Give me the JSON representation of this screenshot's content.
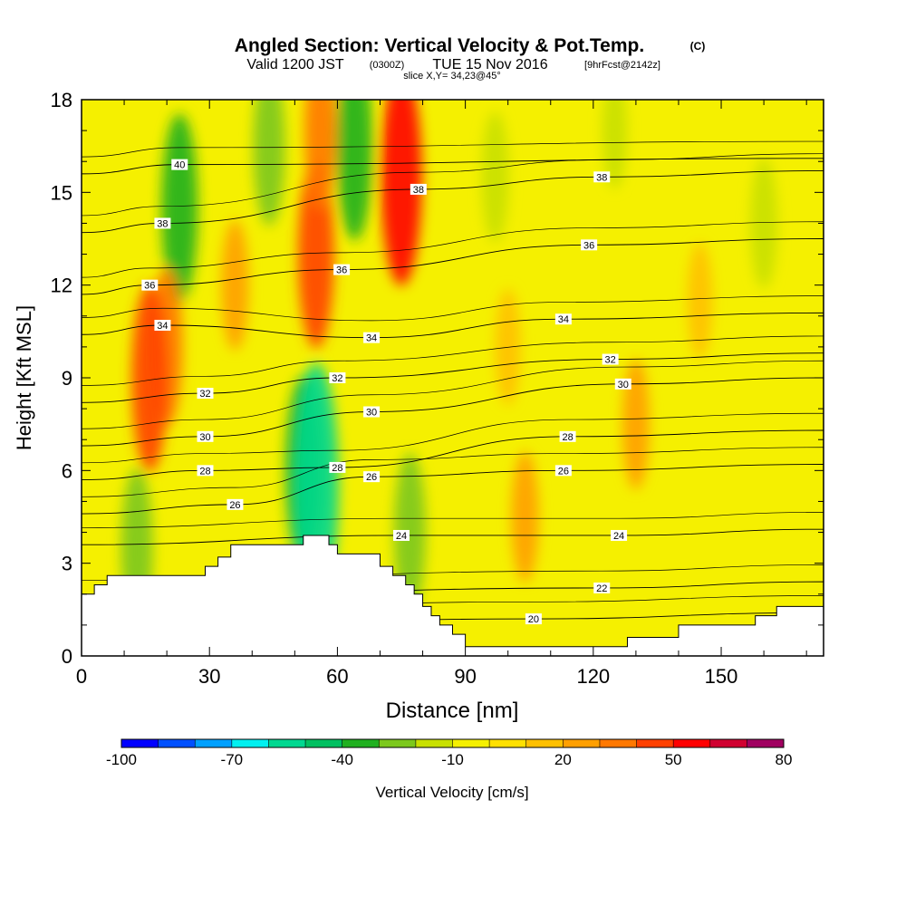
{
  "title": {
    "main": "Angled Section: Vertical Velocity & Pot.Temp.",
    "main_unit": "(C)",
    "valid_prefix": "Valid 1200 JST",
    "valid_utc": "(0300Z)",
    "valid_date": "TUE 15 Nov 2016",
    "forecast": "[9hrFcst@2142z]",
    "slice": "slice X,Y= 34,23@45°"
  },
  "chart_data": {
    "type": "heatmap",
    "xlabel": "Distance [nm]",
    "ylabel": "Height [Kft MSL]",
    "xlim": [
      0,
      174
    ],
    "ylim": [
      0,
      18
    ],
    "x_ticks": [
      "0",
      "30",
      "60",
      "90",
      "120",
      "150"
    ],
    "x_tick_values": [
      0,
      30,
      60,
      90,
      120,
      150
    ],
    "y_ticks": [
      "0",
      "3",
      "6",
      "9",
      "12",
      "15",
      "18"
    ],
    "y_tick_values": [
      0,
      3,
      6,
      9,
      12,
      15,
      18
    ],
    "terrain": [
      [
        0,
        2.0
      ],
      [
        3,
        2.0
      ],
      [
        3,
        2.3
      ],
      [
        6,
        2.3
      ],
      [
        6,
        2.6
      ],
      [
        21,
        2.6
      ],
      [
        21,
        2.6
      ],
      [
        29,
        2.6
      ],
      [
        29,
        2.9
      ],
      [
        32,
        2.9
      ],
      [
        32,
        3.2
      ],
      [
        35,
        3.2
      ],
      [
        35,
        3.6
      ],
      [
        52,
        3.6
      ],
      [
        52,
        3.9
      ],
      [
        58,
        3.9
      ],
      [
        58,
        3.6
      ],
      [
        60,
        3.6
      ],
      [
        60,
        3.3
      ],
      [
        70,
        3.3
      ],
      [
        70,
        2.9
      ],
      [
        73,
        2.9
      ],
      [
        73,
        2.6
      ],
      [
        76,
        2.6
      ],
      [
        76,
        2.3
      ],
      [
        78,
        2.3
      ],
      [
        78,
        2.0
      ],
      [
        80,
        2.0
      ],
      [
        80,
        1.6
      ],
      [
        82,
        1.6
      ],
      [
        82,
        1.3
      ],
      [
        84,
        1.3
      ],
      [
        84,
        1.0
      ],
      [
        87,
        1.0
      ],
      [
        87,
        0.7
      ],
      [
        90,
        0.7
      ],
      [
        90,
        0.3
      ],
      [
        100,
        0.3
      ],
      [
        128,
        0.3
      ],
      [
        128,
        0.6
      ],
      [
        140,
        0.6
      ],
      [
        140,
        1.0
      ],
      [
        158,
        1.0
      ],
      [
        158,
        1.3
      ],
      [
        163,
        1.3
      ],
      [
        163,
        1.6
      ],
      [
        174,
        1.6
      ]
    ],
    "vertical_velocity_features": [
      {
        "x": 23,
        "y": 14.5,
        "value": -40
      },
      {
        "x": 20,
        "y": 10.0,
        "value": 30
      },
      {
        "x": 16,
        "y": 9.0,
        "value": 40
      },
      {
        "x": 55,
        "y": 13.0,
        "value": 40
      },
      {
        "x": 56,
        "y": 17.0,
        "value": 30
      },
      {
        "x": 64,
        "y": 16.5,
        "value": -40
      },
      {
        "x": 75,
        "y": 15.5,
        "value": 50
      },
      {
        "x": 52,
        "y": 6.0,
        "value": -40
      },
      {
        "x": 55,
        "y": 5.5,
        "value": -60
      },
      {
        "x": 77,
        "y": 4.0,
        "value": -30
      },
      {
        "x": 13,
        "y": 3.5,
        "value": -30
      },
      {
        "x": 104,
        "y": 4.5,
        "value": 20
      },
      {
        "x": 130,
        "y": 7.5,
        "value": 20
      },
      {
        "x": 145,
        "y": 11.5,
        "value": 15
      },
      {
        "x": 100,
        "y": 10.0,
        "value": 15
      },
      {
        "x": 160,
        "y": 14.0,
        "value": -20
      },
      {
        "x": 97,
        "y": 15.5,
        "value": -20
      },
      {
        "x": 125,
        "y": 17.0,
        "value": -15
      },
      {
        "x": 44,
        "y": 16.5,
        "value": -30
      },
      {
        "x": 36,
        "y": 12.0,
        "value": 20
      }
    ],
    "potential_temperature_contours": [
      {
        "label": "20",
        "label_x": 106,
        "label_y": 1.2
      },
      {
        "label": "22",
        "label_x": 122,
        "label_y": 2.2
      },
      {
        "label": "24",
        "label_x": 75,
        "label_y": 3.9
      },
      {
        "label": "24",
        "label_x": 126,
        "label_y": 3.9
      },
      {
        "label": "26",
        "label_x": 36,
        "label_y": 4.9
      },
      {
        "label": "26",
        "label_x": 68,
        "label_y": 5.8
      },
      {
        "label": "26",
        "label_x": 113,
        "label_y": 6.0
      },
      {
        "label": "28",
        "label_x": 29,
        "label_y": 6.0
      },
      {
        "label": "28",
        "label_x": 60,
        "label_y": 6.1
      },
      {
        "label": "28",
        "label_x": 114,
        "label_y": 7.1
      },
      {
        "label": "30",
        "label_x": 29,
        "label_y": 7.1
      },
      {
        "label": "30",
        "label_x": 68,
        "label_y": 7.9
      },
      {
        "label": "30",
        "label_x": 127,
        "label_y": 8.8
      },
      {
        "label": "32",
        "label_x": 29,
        "label_y": 8.5
      },
      {
        "label": "32",
        "label_x": 60,
        "label_y": 9.0
      },
      {
        "label": "32",
        "label_x": 124,
        "label_y": 9.6
      },
      {
        "label": "34",
        "label_x": 19,
        "label_y": 10.7
      },
      {
        "label": "34",
        "label_x": 68,
        "label_y": 10.3
      },
      {
        "label": "34",
        "label_x": 113,
        "label_y": 10.9
      },
      {
        "label": "36",
        "label_x": 16,
        "label_y": 12.0
      },
      {
        "label": "36",
        "label_x": 61,
        "label_y": 12.5
      },
      {
        "label": "36",
        "label_x": 119,
        "label_y": 13.3
      },
      {
        "label": "38",
        "label_x": 19,
        "label_y": 14.0
      },
      {
        "label": "38",
        "label_x": 79,
        "label_y": 15.1
      },
      {
        "label": "38",
        "label_x": 122,
        "label_y": 15.5
      },
      {
        "label": "40",
        "label_x": 23,
        "label_y": 15.9
      }
    ]
  },
  "colorbar": {
    "label": "Vertical Velocity [cm/s]",
    "tick_labels": [
      "-100",
      "-70",
      "-40",
      "-10",
      "20",
      "50",
      "80"
    ],
    "tick_values": [
      -100,
      -70,
      -40,
      -10,
      20,
      50,
      80
    ],
    "bins": [
      -100,
      -90,
      -80,
      -70,
      -60,
      -50,
      -40,
      -30,
      -20,
      -10,
      0,
      10,
      20,
      30,
      40,
      50,
      60,
      70,
      80
    ],
    "colors": [
      "#0000ff",
      "#0050ff",
      "#00a0ff",
      "#00f0f0",
      "#00d890",
      "#00c060",
      "#20b020",
      "#7cc81c",
      "#c8e000",
      "#f5f000",
      "#ffe000",
      "#ffc000",
      "#ff9f00",
      "#ff7800",
      "#ff4000",
      "#ff0000",
      "#d00030",
      "#a00060"
    ]
  }
}
